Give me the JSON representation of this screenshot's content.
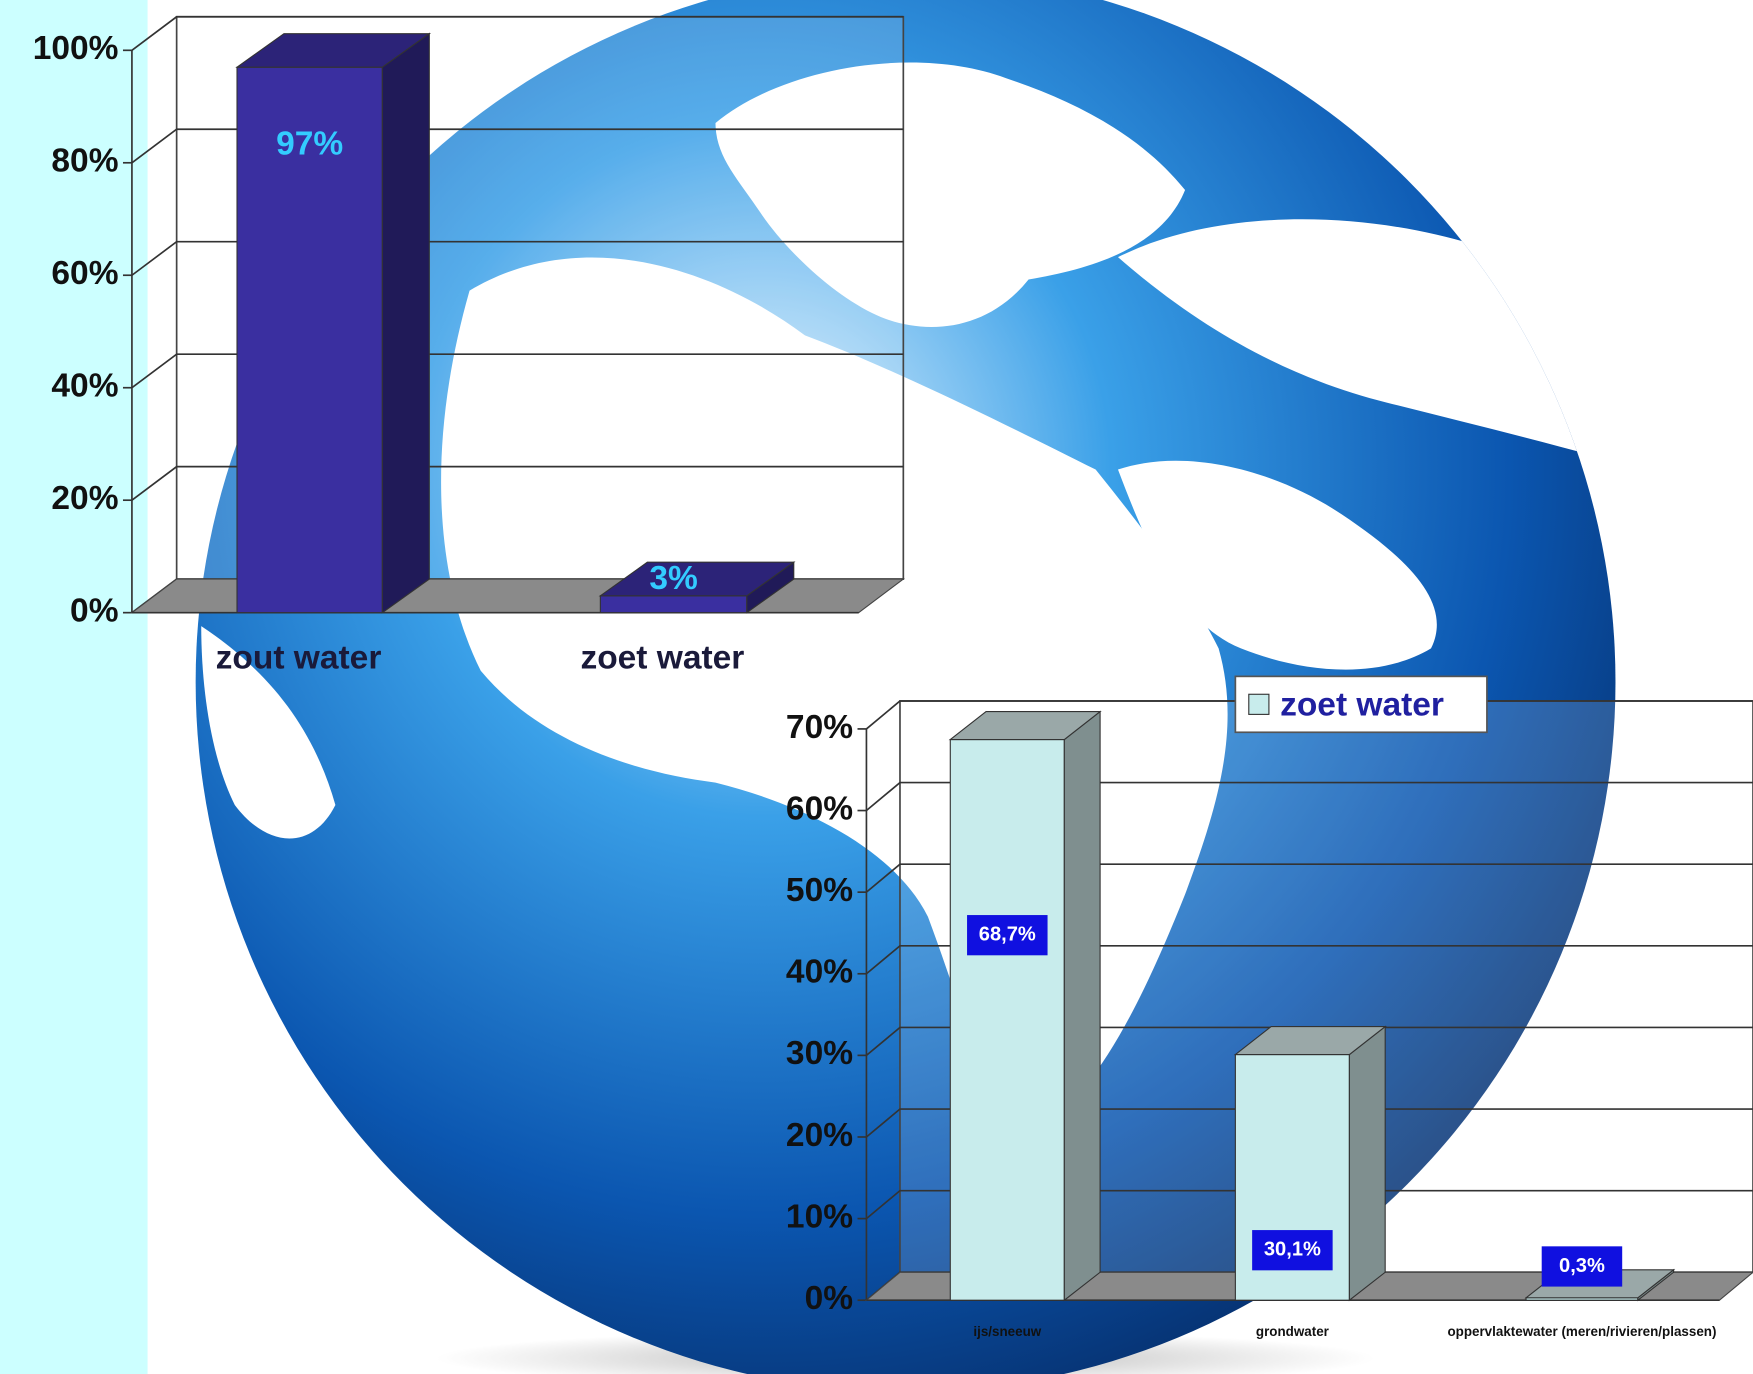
{
  "chart_data": [
    {
      "type": "bar",
      "categories": [
        "zout water",
        "zoet water"
      ],
      "values": [
        97,
        3
      ],
      "value_labels": [
        "97%",
        "3%"
      ],
      "color": "#3a2fa0",
      "ylim": [
        0,
        100
      ],
      "yticks": [
        {
          "value": 0,
          "label": "0%"
        },
        {
          "value": 20,
          "label": "20%"
        },
        {
          "value": 40,
          "label": "40%"
        },
        {
          "value": 60,
          "label": "60%"
        },
        {
          "value": 80,
          "label": "80%"
        },
        {
          "value": 100,
          "label": "100%"
        }
      ],
      "grid": true
    },
    {
      "type": "bar",
      "categories": [
        "ijs/sneeuw",
        "grondwater",
        "oppervlaktewater (meren/rivieren/plassen)"
      ],
      "series": [
        {
          "name": "zoet water",
          "color": "#c8ecec",
          "values": [
            68.7,
            30.1,
            0.3
          ],
          "value_labels": [
            "68,7%",
            "30,1%",
            "0,3%"
          ]
        }
      ],
      "ylim": [
        0,
        70
      ],
      "yticks": [
        {
          "value": 0,
          "label": "0%"
        },
        {
          "value": 10,
          "label": "10%"
        },
        {
          "value": 20,
          "label": "20%"
        },
        {
          "value": 30,
          "label": "30%"
        },
        {
          "value": 40,
          "label": "40%"
        },
        {
          "value": 50,
          "label": "50%"
        },
        {
          "value": 60,
          "label": "60%"
        },
        {
          "value": 70,
          "label": "70%"
        }
      ],
      "grid": true,
      "legend": "top"
    }
  ]
}
